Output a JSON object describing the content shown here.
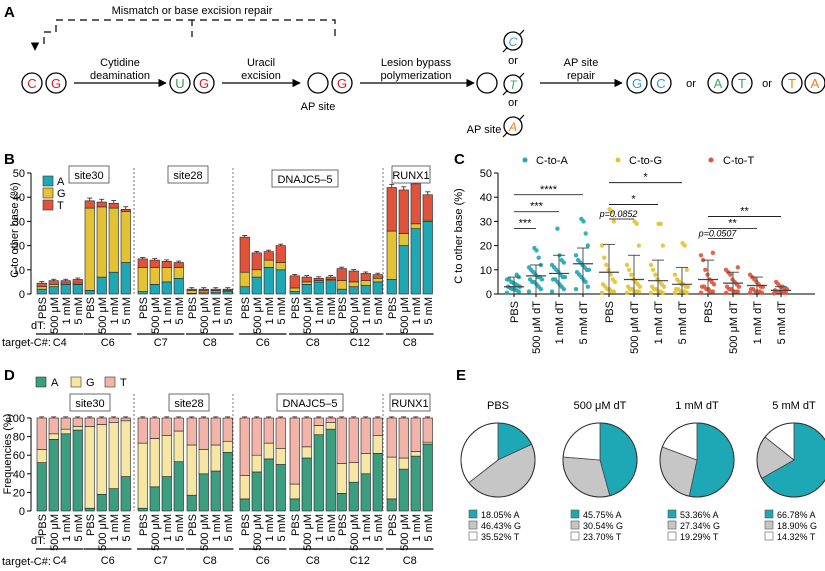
{
  "colors": {
    "teal": "#1ea7b4",
    "gold": "#e3c233",
    "orange": "#e0533a",
    "stackA": "#3b9e7e",
    "stackG": "#f6e6a3",
    "stackT": "#f2b4a8",
    "uracil": "#2ea043",
    "red": "#d11f26",
    "cyan": "#2aa0d9",
    "greenTeal": "#3aa860",
    "orangeBase": "#ef7d1a"
  },
  "panelA": {
    "label": "A",
    "mismatch_label": "Mismatch or base excision repair",
    "step1": [
      "Cytidine",
      "deamination"
    ],
    "step2": [
      "Uracil",
      "excision"
    ],
    "step3": [
      "Lesion bypass",
      "polymerization"
    ],
    "step4": [
      "AP site",
      "repair"
    ],
    "ap_site": "AP site",
    "or": "or",
    "bases": {
      "C": "C",
      "G": "G",
      "U": "U",
      "T": "T",
      "A": "A"
    }
  },
  "panelB": {
    "label": "B",
    "ylabel": "C to other base (%)",
    "legend": [
      "A",
      "G",
      "T"
    ],
    "loci": [
      "site30",
      "site28",
      "DNAJC5–5",
      "RUNX1"
    ],
    "dt_label": "dT:",
    "target_label": "target-C#:",
    "conditions": [
      "PBS",
      "500 μM",
      "1 mM",
      "5 mM"
    ],
    "targets": [
      "C4",
      "C6",
      "C7",
      "C8",
      "C6",
      "C8",
      "C12",
      "C8"
    ]
  },
  "panelC": {
    "label": "C",
    "ylabel": "C to other base (%)",
    "legend": [
      "C-to-A",
      "C-to-G",
      "C-to-T"
    ],
    "xlabels": [
      "PBS",
      "500 μM dT",
      "1 mM dT",
      "5 mM dT"
    ],
    "sig": [
      "***",
      "***",
      "****",
      "p=0.0852",
      "*",
      "*",
      "p=0.0507",
      "**",
      "**"
    ]
  },
  "panelD": {
    "label": "D",
    "ylabel": "Frequencies (%)",
    "legend": [
      "A",
      "G",
      "T"
    ],
    "loci": [
      "site30",
      "site28",
      "DNAJC5–5",
      "RUNX1"
    ],
    "dt_label": "dT:",
    "target_label": "target-C#:",
    "conditions": [
      "PBS",
      "500 μM",
      "1 mM",
      "5 mM"
    ],
    "targets": [
      "C4",
      "C6",
      "C7",
      "C8",
      "C6",
      "C8",
      "C12",
      "C8"
    ]
  },
  "panelE": {
    "label": "E",
    "pies": [
      {
        "title": "PBS",
        "lines": [
          "18.05% A",
          "46.43% G",
          "35.52% T"
        ]
      },
      {
        "title": "500 μM dT",
        "lines": [
          "45.75% A",
          "30.54% G",
          "23.70% T"
        ]
      },
      {
        "title": "1 mM dT",
        "lines": [
          "53.36% A",
          "27.34% G",
          "19.29% T"
        ]
      },
      {
        "title": "5 mM dT",
        "lines": [
          "66.78% A",
          "18.90% G",
          "14.32% T"
        ]
      }
    ]
  },
  "chart_data": [
    {
      "panel": "B",
      "type": "bar",
      "title": "",
      "xlabel": "",
      "ylabel": "C to other base (%)",
      "ylim": [
        0,
        50
      ],
      "yticks": [
        0,
        10,
        20,
        30,
        40,
        50
      ],
      "series_names": [
        "A",
        "G",
        "T"
      ],
      "groups": [
        {
          "locus": "site30",
          "target": "C4",
          "bars": [
            [
              2,
              1,
              1.5
            ],
            [
              3,
              1,
              1.5
            ],
            [
              4,
              0.5,
              1
            ],
            [
              4,
              0.5,
              1.5
            ]
          ]
        },
        {
          "locus": "site30",
          "target": "C6",
          "bars": [
            [
              1.5,
              34,
              3
            ],
            [
              7,
              29,
              2
            ],
            [
              9,
              26.5,
              2
            ],
            [
              13,
              21,
              1
            ]
          ]
        },
        {
          "locus": "site28",
          "target": "C7",
          "bars": [
            [
              1,
              10,
              3.5
            ],
            [
              4,
              7,
              3
            ],
            [
              5,
              6,
              2.5
            ],
            [
              6.5,
              4.5,
              2
            ]
          ]
        },
        {
          "locus": "site28",
          "target": "C8",
          "bars": [
            [
              0.3,
              1.2,
              0.5
            ],
            [
              0.5,
              0.8,
              0.7
            ],
            [
              0.8,
              0.6,
              0.6
            ],
            [
              1,
              0.5,
              0.5
            ]
          ]
        },
        {
          "locus": "DNAJC5–5",
          "target": "C6",
          "bars": [
            [
              3,
              6,
              14.5
            ],
            [
              7,
              3,
              7
            ],
            [
              11,
              3,
              3.5
            ],
            [
              10,
              3,
              7
            ]
          ]
        },
        {
          "locus": "DNAJC5–5",
          "target": "C8",
          "bars": [
            [
              1,
              1.5,
              5
            ],
            [
              4,
              1,
              2
            ],
            [
              5,
              0.5,
              1
            ],
            [
              5.5,
              0.5,
              1
            ]
          ]
        },
        {
          "locus": "DNAJC5–5",
          "target": "C12",
          "bars": [
            [
              2,
              3.5,
              5
            ],
            [
              3,
              2,
              4.5
            ],
            [
              3.5,
              2,
              3
            ],
            [
              5,
              1.5,
              1.5
            ]
          ]
        },
        {
          "locus": "RUNX1",
          "target": "C8",
          "bars": [
            [
              6,
              20,
              18
            ],
            [
              20,
              5,
              18
            ],
            [
              27,
              2,
              16.5
            ],
            [
              30,
              0.5,
              10.5
            ]
          ]
        }
      ]
    },
    {
      "panel": "C",
      "type": "scatter",
      "ylabel": "C to other base (%)",
      "ylim": [
        0,
        50
      ],
      "yticks": [
        0,
        10,
        20,
        30,
        40,
        50
      ],
      "series": [
        {
          "name": "C-to-A",
          "means": [
            3,
            7.5,
            8.5,
            12.5
          ],
          "sd_upper": [
            7,
            12,
            16,
            19
          ],
          "points": [
            [
              0.5,
              1,
              1.5,
              2,
              2,
              2.5,
              3,
              3,
              3.5,
              4,
              4.5,
              5,
              6,
              6,
              7,
              8
            ],
            [
              1,
              2,
              3,
              4,
              5,
              5,
              6,
              6,
              7,
              7,
              8,
              9,
              10,
              11,
              12,
              15,
              18,
              19
            ],
            [
              1,
              2,
              3,
              4,
              5,
              6,
              6,
              7,
              7,
              8,
              9,
              10,
              11,
              12,
              13,
              14,
              16,
              27
            ],
            [
              2,
              3,
              5,
              6,
              7,
              8,
              9,
              10,
              10,
              11,
              12,
              13,
              14,
              16,
              20,
              25,
              30,
              31
            ]
          ]
        },
        {
          "name": "C-to-G",
          "means": [
            9,
            6,
            5.5,
            4
          ],
          "sd_upper": [
            20.5,
            16,
            14,
            11
          ],
          "points": [
            [
              0.5,
              1,
              1,
              2,
              2,
              3,
              4,
              5,
              6,
              8,
              10,
              12,
              15,
              20,
              30,
              34,
              35
            ],
            [
              0.5,
              1,
              1,
              1,
              2,
              2,
              3,
              3,
              4,
              5,
              6,
              8,
              10,
              12,
              20,
              29,
              30
            ],
            [
              0.5,
              0.5,
              1,
              1,
              2,
              2,
              3,
              3,
              4,
              5,
              6,
              8,
              10,
              12,
              20,
              29,
              29
            ],
            [
              0.5,
              0.5,
              1,
              1,
              1,
              2,
              2,
              3,
              3,
              4,
              4,
              5,
              6,
              8,
              10,
              20,
              21
            ]
          ]
        },
        {
          "name": "C-to-T",
          "means": [
            6,
            4.5,
            3.5,
            1.5
          ],
          "sd_upper": [
            14,
            9,
            7,
            3
          ],
          "points": [
            [
              0.5,
              1,
              1,
              2,
              2,
              3,
              3,
              4,
              5,
              6,
              8,
              10,
              14,
              16,
              17
            ],
            [
              0.5,
              1,
              1,
              1,
              2,
              2,
              3,
              3,
              4,
              5,
              6,
              8,
              9,
              10,
              11
            ],
            [
              0.5,
              0.5,
              1,
              1,
              1,
              2,
              2,
              3,
              3,
              4,
              5,
              6,
              7,
              8
            ],
            [
              0.3,
              0.5,
              0.5,
              1,
              1,
              1,
              1.5,
              2,
              2,
              3,
              3,
              4,
              5
            ]
          ]
        }
      ],
      "significance": [
        {
          "series": "C-to-A",
          "from": "PBS",
          "to": "500 μM dT",
          "text": "***"
        },
        {
          "series": "C-to-A",
          "from": "PBS",
          "to": "1 mM dT",
          "text": "***"
        },
        {
          "series": "C-to-A",
          "from": "PBS",
          "to": "5 mM dT",
          "text": "****"
        },
        {
          "series": "C-to-G",
          "from": "PBS",
          "to": "500 μM dT",
          "text": "p=0.0852"
        },
        {
          "series": "C-to-G",
          "from": "PBS",
          "to": "1 mM dT",
          "text": "*"
        },
        {
          "series": "C-to-G",
          "from": "PBS",
          "to": "5 mM dT",
          "text": "*"
        },
        {
          "series": "C-to-T",
          "from": "PBS",
          "to": "500 μM dT",
          "text": "p=0.0507"
        },
        {
          "series": "C-to-T",
          "from": "PBS",
          "to": "1 mM dT",
          "text": "**"
        },
        {
          "series": "C-to-T",
          "from": "PBS",
          "to": "5 mM dT",
          "text": "**"
        }
      ]
    },
    {
      "panel": "D",
      "type": "bar",
      "ylabel": "Frequencies (%)",
      "ylim": [
        0,
        100
      ],
      "yticks": [
        0,
        20,
        40,
        60,
        80,
        100
      ],
      "series_names": [
        "A",
        "G",
        "T"
      ],
      "groups": [
        {
          "locus": "site30",
          "target": "C4",
          "bars": [
            [
              52,
              14,
              34
            ],
            [
              77,
              6,
              17
            ],
            [
              83,
              5,
              12
            ],
            [
              87,
              4,
              9
            ]
          ]
        },
        {
          "locus": "site30",
          "target": "C6",
          "bars": [
            [
              3,
              88,
              9
            ],
            [
              18,
              75,
              7
            ],
            [
              24,
              71,
              5
            ],
            [
              37,
              60,
              3
            ]
          ]
        },
        {
          "locus": "site28",
          "target": "C7",
          "bars": [
            [
              3,
              70,
              27
            ],
            [
              26,
              52,
              22
            ],
            [
              37,
              44,
              19
            ],
            [
              53,
              33,
              14
            ]
          ]
        },
        {
          "locus": "site28",
          "target": "C8",
          "bars": [
            [
              17,
              54,
              29
            ],
            [
              40,
              26,
              34
            ],
            [
              43,
              28,
              29
            ],
            [
              63,
              12,
              25
            ]
          ]
        },
        {
          "locus": "DNAJC5–5",
          "target": "C6",
          "bars": [
            [
              13,
              25,
              62
            ],
            [
              42,
              18,
              40
            ],
            [
              56,
              17,
              27
            ],
            [
              50,
              17,
              33
            ]
          ]
        },
        {
          "locus": "DNAJC5–5",
          "target": "C8",
          "bars": [
            [
              13,
              16,
              71
            ],
            [
              57,
              12,
              31
            ],
            [
              82,
              10,
              8
            ],
            [
              88,
              7,
              5
            ]
          ]
        },
        {
          "locus": "DNAJC5–5",
          "target": "C12",
          "bars": [
            [
              19,
              32,
              49
            ],
            [
              31,
              21,
              48
            ],
            [
              40,
              22,
              38
            ],
            [
              62,
              19,
              19
            ]
          ]
        },
        {
          "locus": "RUNX1",
          "target": "C8",
          "bars": [
            [
              13,
              45,
              42
            ],
            [
              45,
              12,
              43
            ],
            [
              59,
              5,
              36
            ],
            [
              72,
              2,
              26
            ]
          ]
        }
      ]
    },
    {
      "panel": "E",
      "type": "pie",
      "categories": [
        "A",
        "G",
        "T"
      ],
      "series": [
        {
          "name": "PBS",
          "values": [
            18.05,
            46.43,
            35.52
          ]
        },
        {
          "name": "500 μM dT",
          "values": [
            45.75,
            30.54,
            23.7
          ]
        },
        {
          "name": "1 mM dT",
          "values": [
            53.36,
            27.34,
            19.29
          ]
        },
        {
          "name": "5 mM dT",
          "values": [
            66.78,
            18.9,
            14.32
          ]
        }
      ]
    }
  ]
}
